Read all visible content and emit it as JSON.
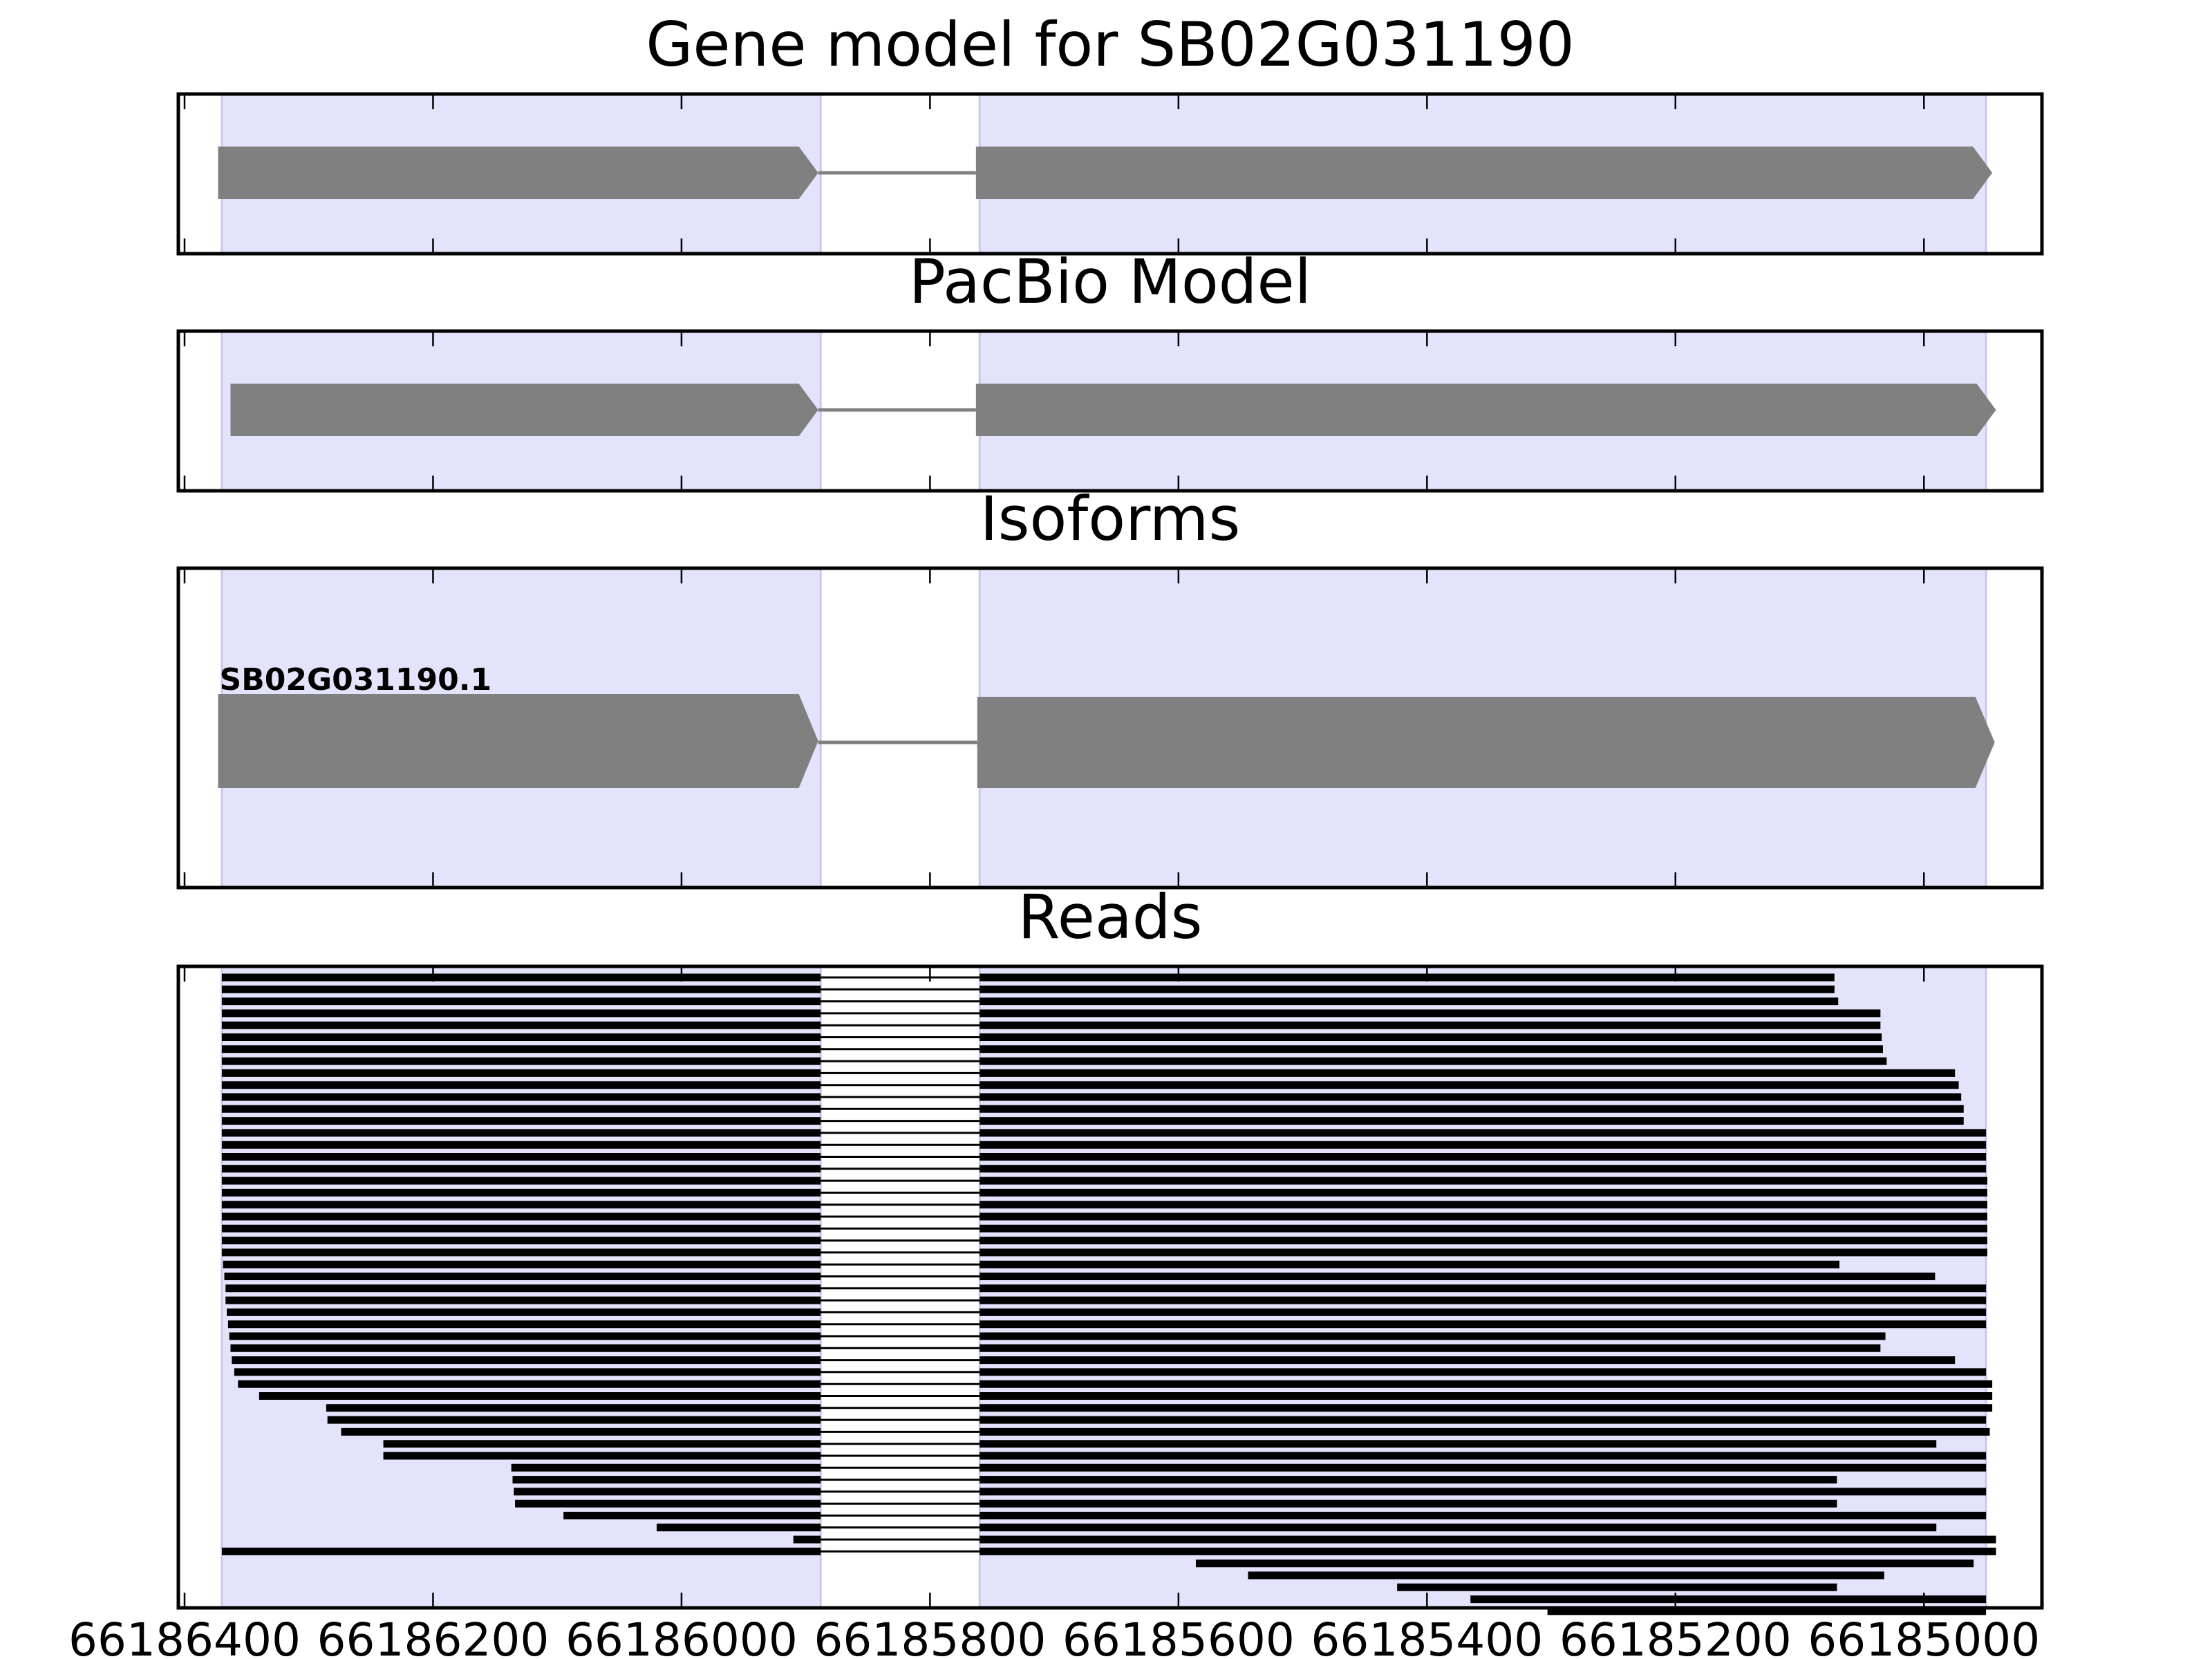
{
  "chart_data": {
    "type": "gene-track",
    "x_axis": {
      "ticks": [
        66186400,
        66186200,
        66186000,
        66185800,
        66185600,
        66185400,
        66185200,
        66185000
      ],
      "tick_labels": [
        "66186400",
        "66186200",
        "66186000",
        "66185800",
        "66185600",
        "66185400",
        "66185200",
        "66185000"
      ],
      "xlim": [
        66186405,
        66184905
      ],
      "reversed": true
    },
    "exon_shading": [
      [
        66186370,
        66185888
      ],
      [
        66185760,
        66184950
      ]
    ],
    "shading_color": "#e3e3fb",
    "feature_color": "#808080",
    "read_color": "#000000",
    "panels": [
      {
        "title": "Gene model for SB02G031190",
        "exons": [
          [
            66186373,
            66185890
          ],
          [
            66185763,
            66184945
          ]
        ],
        "intron": [
          66185890,
          66185763
        ]
      },
      {
        "title": "PacBio Model",
        "exons": [
          [
            66186363,
            66185890
          ],
          [
            66185763,
            66184942
          ]
        ],
        "intron": [
          66185890,
          66185763
        ]
      },
      {
        "title": "Isoforms",
        "isoforms": [
          {
            "label": "SB02G031190.1",
            "exons": [
              [
                66186373,
                66185890
              ],
              [
                66185762,
                66184943
              ]
            ],
            "intron": [
              66185890,
              66185762
            ]
          }
        ]
      },
      {
        "title": "Reads",
        "intron": [
          66185888,
          66185760
        ],
        "reads": [
          [
            66186370,
            66185072
          ],
          [
            66186370,
            66185072
          ],
          [
            66186370,
            66185069
          ],
          [
            66186370,
            66185035
          ],
          [
            66186370,
            66185035
          ],
          [
            66186370,
            66185034
          ],
          [
            66186370,
            66185033
          ],
          [
            66186370,
            66185030
          ],
          [
            66186370,
            66184975
          ],
          [
            66186370,
            66184972
          ],
          [
            66186370,
            66184970
          ],
          [
            66186370,
            66184968
          ],
          [
            66186370,
            66184968
          ],
          [
            66186370,
            66184950
          ],
          [
            66186370,
            66184950
          ],
          [
            66186370,
            66184950
          ],
          [
            66186370,
            66184950
          ],
          [
            66186370,
            66184949
          ],
          [
            66186370,
            66184949
          ],
          [
            66186370,
            66184949
          ],
          [
            66186370,
            66184949
          ],
          [
            66186370,
            66184949
          ],
          [
            66186370,
            66184949
          ],
          [
            66186370,
            66184949
          ],
          [
            66186369,
            66185068
          ],
          [
            66186368,
            66184991
          ],
          [
            66186367,
            66184950
          ],
          [
            66186367,
            66184950
          ],
          [
            66186366,
            66184950
          ],
          [
            66186365,
            66184950
          ],
          [
            66186364,
            66185031
          ],
          [
            66186363,
            66185035
          ],
          [
            66186362,
            66184975
          ],
          [
            66186360,
            66184950
          ],
          [
            66186357,
            66184945
          ],
          [
            66186340,
            66184945
          ],
          [
            66186286,
            66184945
          ],
          [
            66186285,
            66184950
          ],
          [
            66186274,
            66184947
          ],
          [
            66186240,
            66184990
          ],
          [
            66186240,
            66184950
          ],
          [
            66186137,
            66184950
          ],
          [
            66186136,
            66185070
          ],
          [
            66186135,
            66184950
          ],
          [
            66186134,
            66185070
          ],
          [
            66186095,
            66184950
          ],
          [
            66186020,
            66184990
          ],
          [
            66185910,
            66184942
          ],
          [
            66186370,
            66184942
          ],
          [
            66185586,
            66184960
          ],
          [
            66185544,
            66185032
          ],
          [
            66185424,
            66185070
          ],
          [
            66185365,
            66184950
          ],
          [
            66185303,
            66184950
          ]
        ]
      }
    ]
  }
}
